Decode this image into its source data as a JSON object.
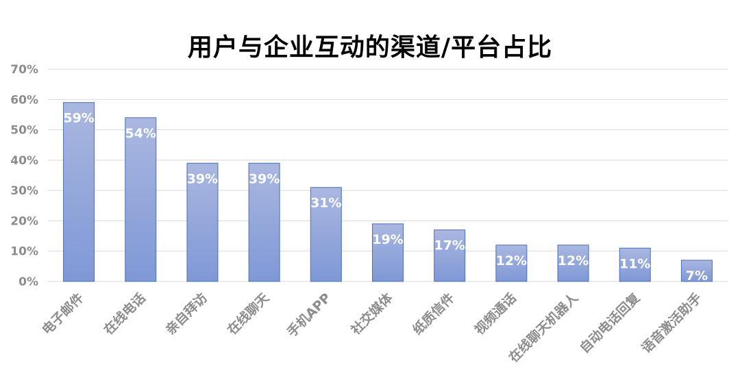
{
  "chart_data": {
    "type": "bar",
    "title": "用户与企业互动的渠道/平台占比",
    "xlabel": "",
    "ylabel": "",
    "categories": [
      "电子邮件",
      "在线电话",
      "亲自拜访",
      "在线聊天",
      "手机APP",
      "社交媒体",
      "纸质信件",
      "视频通话",
      "在线聊天机器人",
      "自动电话回复",
      "语音激活助手"
    ],
    "values": [
      59,
      54,
      39,
      39,
      31,
      19,
      17,
      12,
      12,
      11,
      7
    ],
    "value_labels": [
      "59%",
      "54%",
      "39%",
      "39%",
      "31%",
      "19%",
      "17%",
      "12%",
      "12%",
      "11%",
      "7%"
    ],
    "ylim": [
      0,
      70
    ],
    "yticks": [
      0,
      10,
      20,
      30,
      40,
      50,
      60,
      70
    ],
    "ytick_labels": [
      "0%",
      "10%",
      "20%",
      "30%",
      "40%",
      "50%",
      "60%",
      "70%"
    ],
    "grid": true,
    "legend": "none",
    "colors": {
      "bar_top": "#aab7e0",
      "bar_bottom": "#7f98d6",
      "bar_border": "#4a6fb8",
      "grid": "#d9d9d9",
      "axis_text": "#8c8c8c",
      "data_label": "#ffffff"
    }
  }
}
